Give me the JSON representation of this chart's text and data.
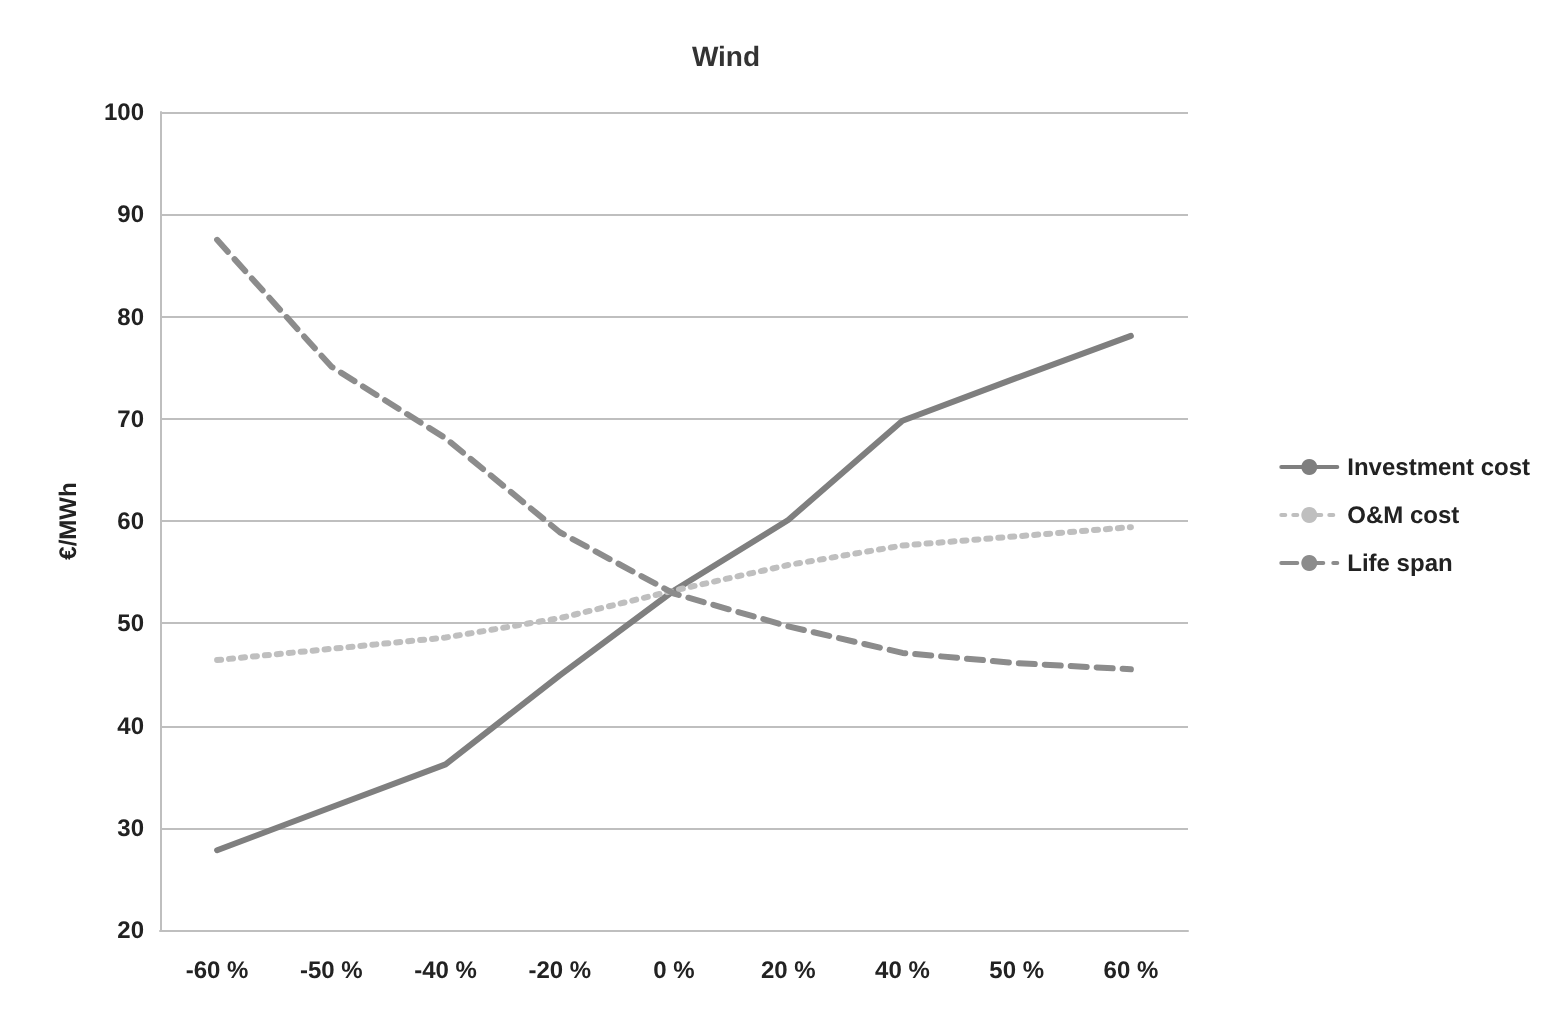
{
  "chart_data": {
    "type": "line",
    "title": "Wind",
    "ylabel": "€/MWh",
    "categories": [
      "-60 %",
      "-50 %",
      "-40 %",
      "-20 %",
      "0 %",
      "20 %",
      "40 %",
      "50 %",
      "60 %"
    ],
    "series": [
      {
        "name": "Investment cost",
        "color": "#7f7f7f",
        "line_style": "solid",
        "values": [
          27.8,
          32,
          36.2,
          44.9,
          53.2,
          60.1,
          69.8,
          74,
          78.1
        ]
      },
      {
        "name": "O&M cost",
        "color": "#bfbfbf",
        "line_style": "dotted",
        "values": [
          46.4,
          47.5,
          48.6,
          50.5,
          53.2,
          55.7,
          57.6,
          58.5,
          59.4
        ]
      },
      {
        "name": "Life span",
        "color": "#8c8c8c",
        "line_style": "dashed",
        "values": [
          87.5,
          75.1,
          68.1,
          58.9,
          52.9,
          49.7,
          47.1,
          46.1,
          45.5
        ]
      }
    ],
    "ylim": [
      20,
      100
    ],
    "yticks": [
      20,
      30,
      40,
      50,
      60,
      70,
      80,
      90,
      100
    ],
    "grid": "y",
    "legend": "right",
    "marker": "none"
  }
}
